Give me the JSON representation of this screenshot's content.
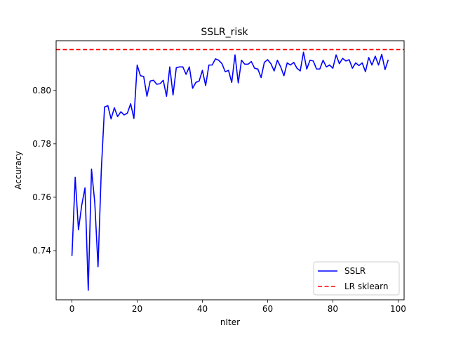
{
  "chart_data": {
    "type": "line",
    "title": "SSLR_risk",
    "xlabel": "nIter",
    "ylabel": "Accuracy",
    "xlim": [
      -4.85,
      101.85
    ],
    "ylim": [
      0.7216,
      0.8186
    ],
    "xticks": [
      0,
      20,
      40,
      60,
      80,
      100
    ],
    "yticks": [
      0.74,
      0.76,
      0.78,
      0.8
    ],
    "xtick_labels": [
      "0",
      "20",
      "40",
      "60",
      "80",
      "100"
    ],
    "ytick_labels": [
      "0.74",
      "0.76",
      "0.78",
      "0.80"
    ],
    "grid": false,
    "legend_position": "lower-right",
    "series": [
      {
        "name": "SSLR",
        "color": "#0000ff",
        "style": "solid",
        "x": [
          0,
          1,
          2,
          3,
          4,
          5,
          6,
          7,
          8,
          9,
          10,
          11,
          12,
          13,
          14,
          15,
          16,
          17,
          18,
          19,
          20,
          21,
          22,
          23,
          24,
          25,
          26,
          27,
          28,
          29,
          30,
          31,
          32,
          33,
          34,
          35,
          36,
          37,
          38,
          39,
          40,
          41,
          42,
          43,
          44,
          45,
          46,
          47,
          48,
          49,
          50,
          51,
          52,
          53,
          54,
          55,
          56,
          57,
          58,
          59,
          60,
          61,
          62,
          63,
          64,
          65,
          66,
          67,
          68,
          69,
          70,
          71,
          72,
          73,
          74,
          75,
          76,
          77,
          78,
          79,
          80,
          81,
          82,
          83,
          84,
          85,
          86,
          87,
          88,
          89,
          90,
          91,
          92,
          93,
          94,
          95,
          96,
          97
        ],
        "values": [
          0.738,
          0.7675,
          0.7478,
          0.757,
          0.7635,
          0.7252,
          0.7705,
          0.758,
          0.734,
          0.77,
          0.7938,
          0.7943,
          0.7893,
          0.7935,
          0.7902,
          0.792,
          0.7908,
          0.7915,
          0.795,
          0.7895,
          0.8095,
          0.8055,
          0.8052,
          0.7978,
          0.8035,
          0.8038,
          0.8023,
          0.8025,
          0.8038,
          0.7978,
          0.8088,
          0.7983,
          0.8085,
          0.8088,
          0.8088,
          0.806,
          0.8088,
          0.8008,
          0.803,
          0.8035,
          0.8075,
          0.8018,
          0.8095,
          0.8095,
          0.8118,
          0.8113,
          0.81,
          0.807,
          0.8075,
          0.803,
          0.8133,
          0.8028,
          0.8113,
          0.8098,
          0.8098,
          0.8108,
          0.8083,
          0.808,
          0.8048,
          0.8105,
          0.8115,
          0.81,
          0.8073,
          0.8113,
          0.8088,
          0.8055,
          0.8103,
          0.8095,
          0.8105,
          0.8083,
          0.8073,
          0.8143,
          0.808,
          0.8113,
          0.811,
          0.808,
          0.808,
          0.8113,
          0.8088,
          0.8095,
          0.8083,
          0.8133,
          0.81,
          0.812,
          0.811,
          0.8115,
          0.8083,
          0.8103,
          0.8093,
          0.8103,
          0.807,
          0.8123,
          0.8095,
          0.8128,
          0.8095,
          0.8135,
          0.8078,
          0.8115
        ]
      },
      {
        "name": "LR sklearn",
        "color": "#ff0000",
        "style": "dashed",
        "type": "hline",
        "y": 0.8153
      }
    ]
  }
}
